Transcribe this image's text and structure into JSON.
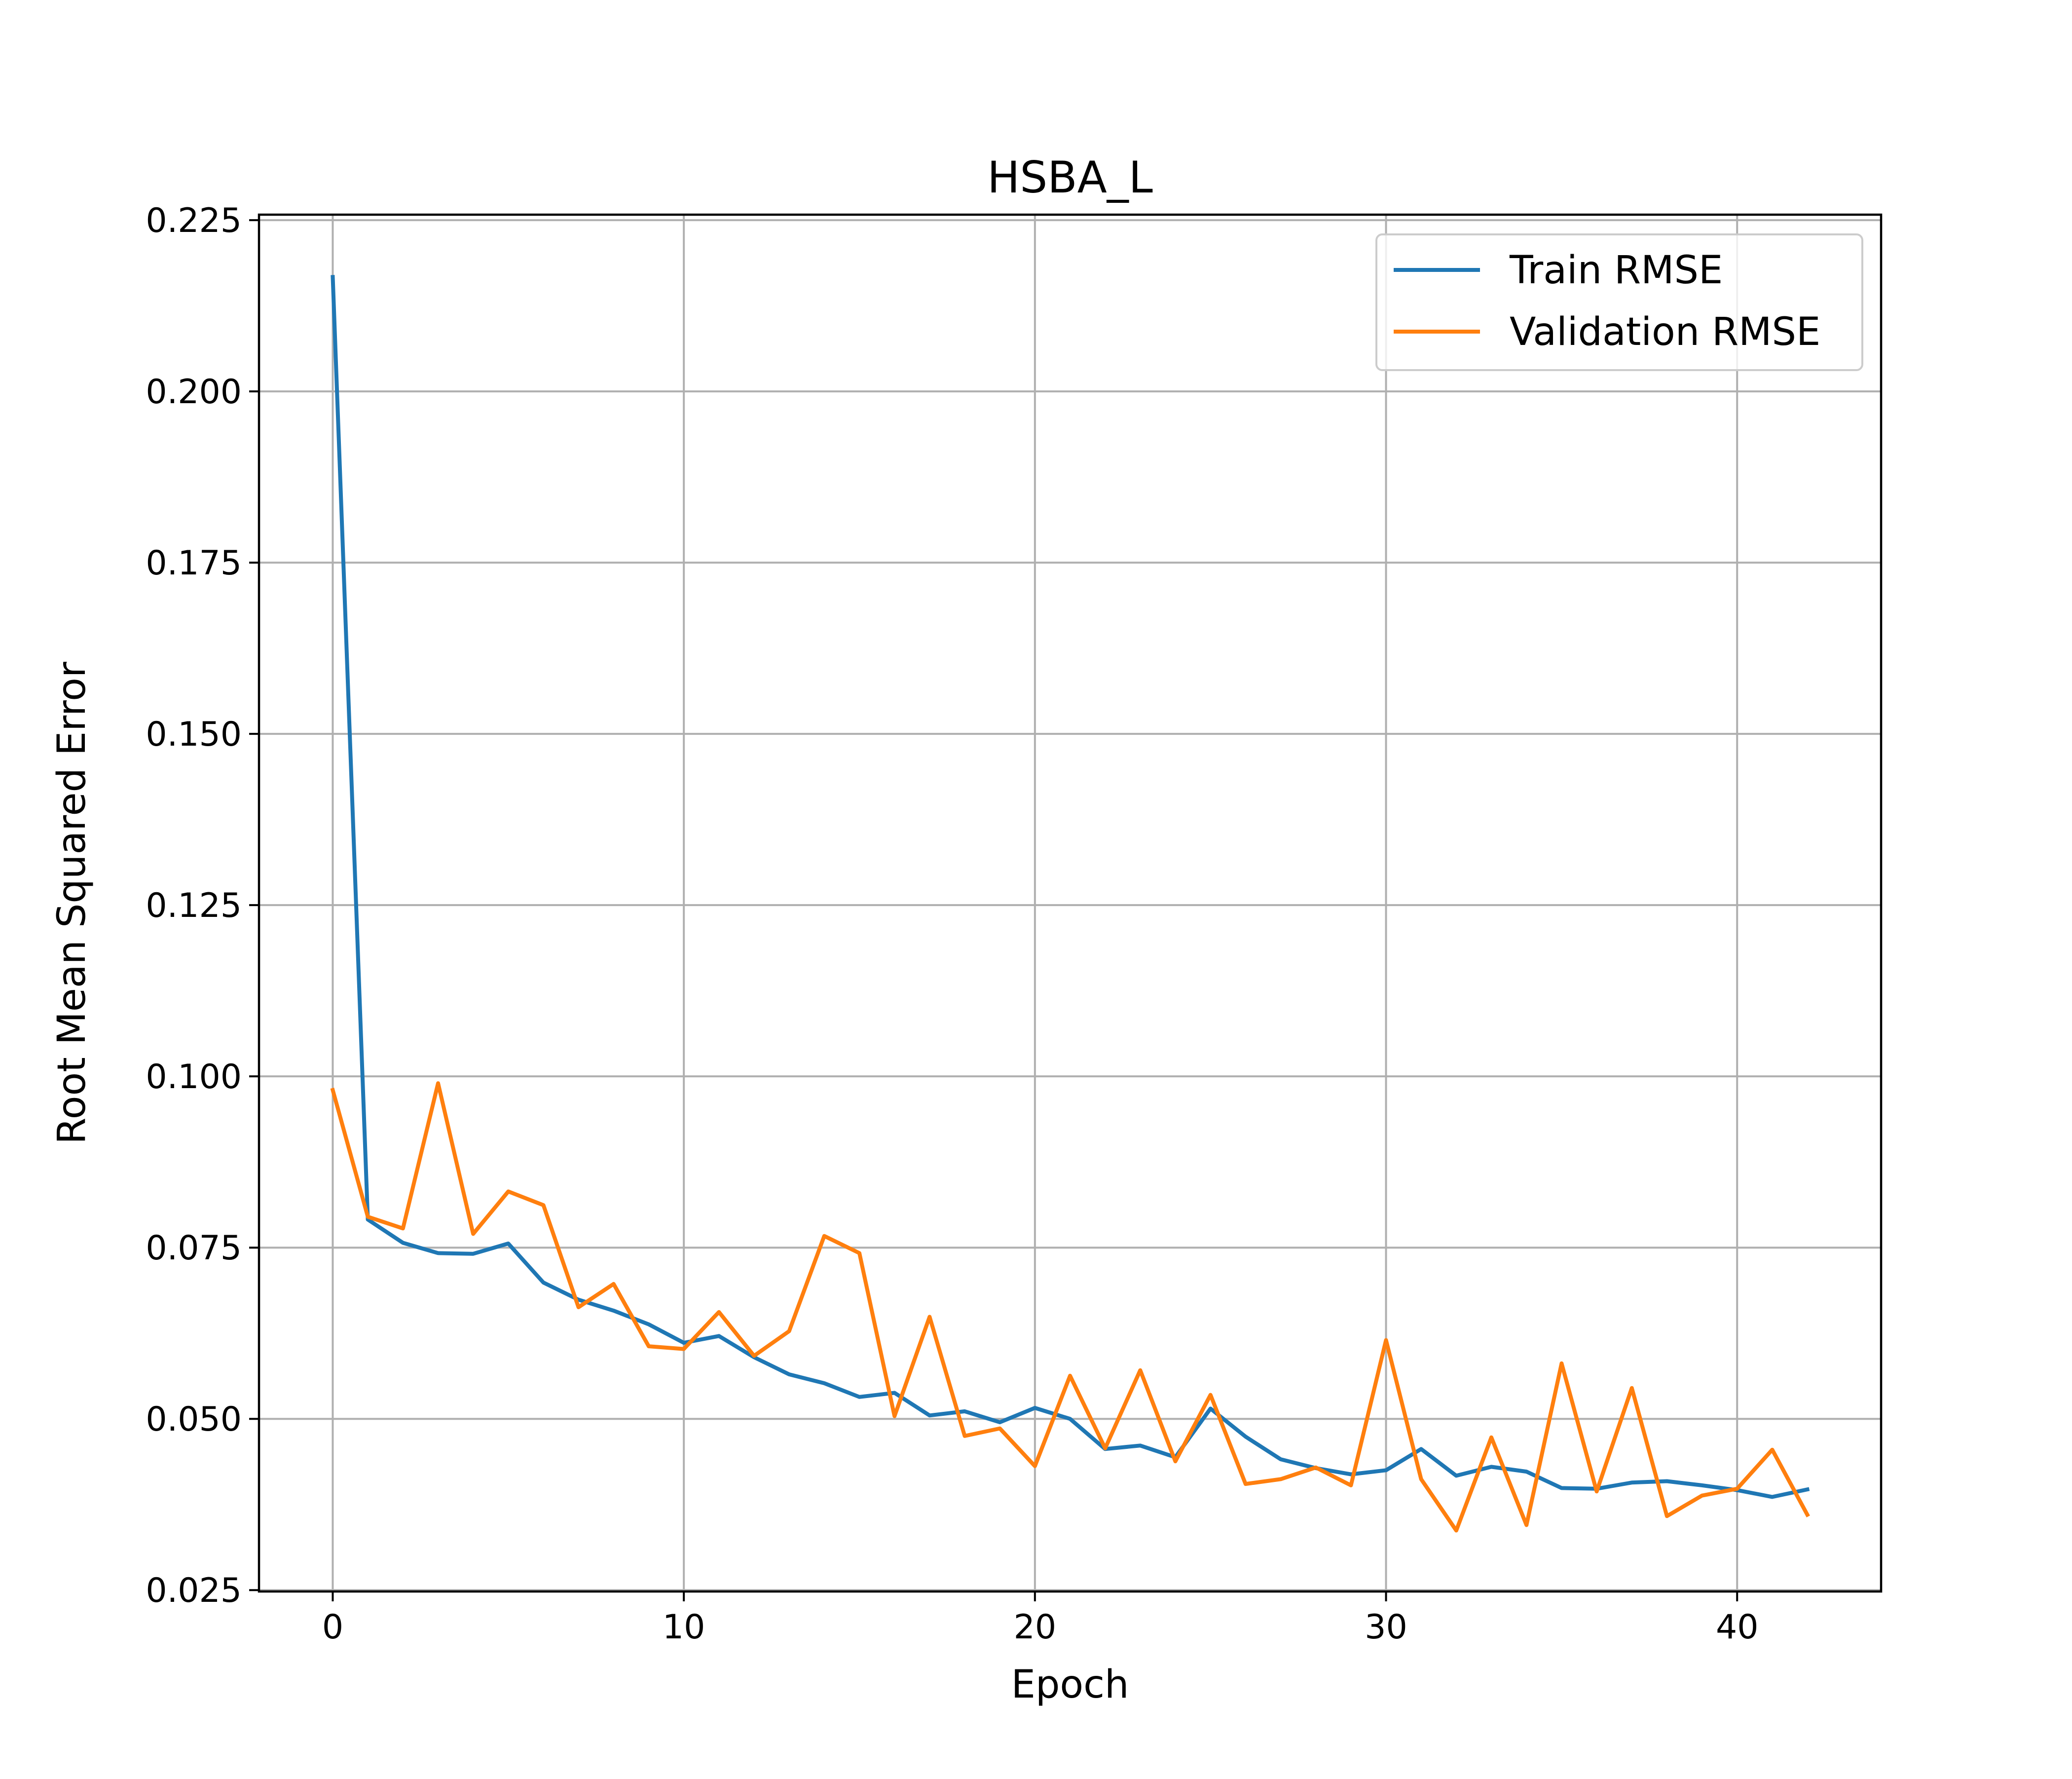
{
  "chart_data": {
    "type": "line",
    "title": "HSBA_L",
    "xlabel": "Epoch",
    "ylabel": "Root Mean Squared Error",
    "xlim": [
      -2.1,
      44.1
    ],
    "ylim": [
      0.0248,
      0.2258
    ],
    "xticks": [
      0,
      10,
      20,
      30,
      40
    ],
    "xtick_labels": [
      "0",
      "10",
      "20",
      "30",
      "40"
    ],
    "yticks": [
      0.025,
      0.05,
      0.075,
      0.1,
      0.125,
      0.15,
      0.175,
      0.2,
      0.225
    ],
    "ytick_labels": [
      "0.025",
      "0.050",
      "0.075",
      "0.100",
      "0.125",
      "0.150",
      "0.175",
      "0.200",
      "0.225"
    ],
    "grid": true,
    "legend_position": "top-right",
    "x": [
      0,
      1,
      2,
      3,
      4,
      5,
      6,
      7,
      8,
      9,
      10,
      11,
      12,
      13,
      14,
      15,
      16,
      17,
      18,
      19,
      20,
      21,
      22,
      23,
      24,
      25,
      26,
      27,
      28,
      29,
      30,
      31,
      32,
      33,
      34,
      35,
      36,
      37,
      38,
      39,
      40,
      41,
      42
    ],
    "series": [
      {
        "name": "Train RMSE",
        "color": "#1f77b4",
        "values": [
          0.2167,
          0.0791,
          0.0757,
          0.0742,
          0.0741,
          0.0756,
          0.0699,
          0.0674,
          0.0658,
          0.0638,
          0.0611,
          0.0621,
          0.059,
          0.0565,
          0.0552,
          0.0532,
          0.0538,
          0.0505,
          0.0511,
          0.0495,
          0.0516,
          0.05,
          0.0456,
          0.0461,
          0.0444,
          0.0515,
          0.0474,
          0.0441,
          0.0428,
          0.0419,
          0.0425,
          0.0456,
          0.0417,
          0.043,
          0.0423,
          0.0399,
          0.0398,
          0.0407,
          0.0409,
          0.0403,
          0.0396,
          0.0386,
          0.0397
        ]
      },
      {
        "name": "Validation RMSE",
        "color": "#ff7f0e",
        "values": [
          0.098,
          0.0795,
          0.0778,
          0.099,
          0.077,
          0.0832,
          0.0812,
          0.0663,
          0.0697,
          0.0606,
          0.0602,
          0.0656,
          0.0592,
          0.0628,
          0.0767,
          0.0742,
          0.0504,
          0.0649,
          0.0475,
          0.0486,
          0.0431,
          0.0563,
          0.0457,
          0.0571,
          0.0438,
          0.0535,
          0.0405,
          0.0412,
          0.0429,
          0.0403,
          0.0615,
          0.0412,
          0.0337,
          0.0473,
          0.0345,
          0.0581,
          0.0394,
          0.0545,
          0.0358,
          0.0388,
          0.0398,
          0.0455,
          0.036
        ]
      }
    ]
  }
}
